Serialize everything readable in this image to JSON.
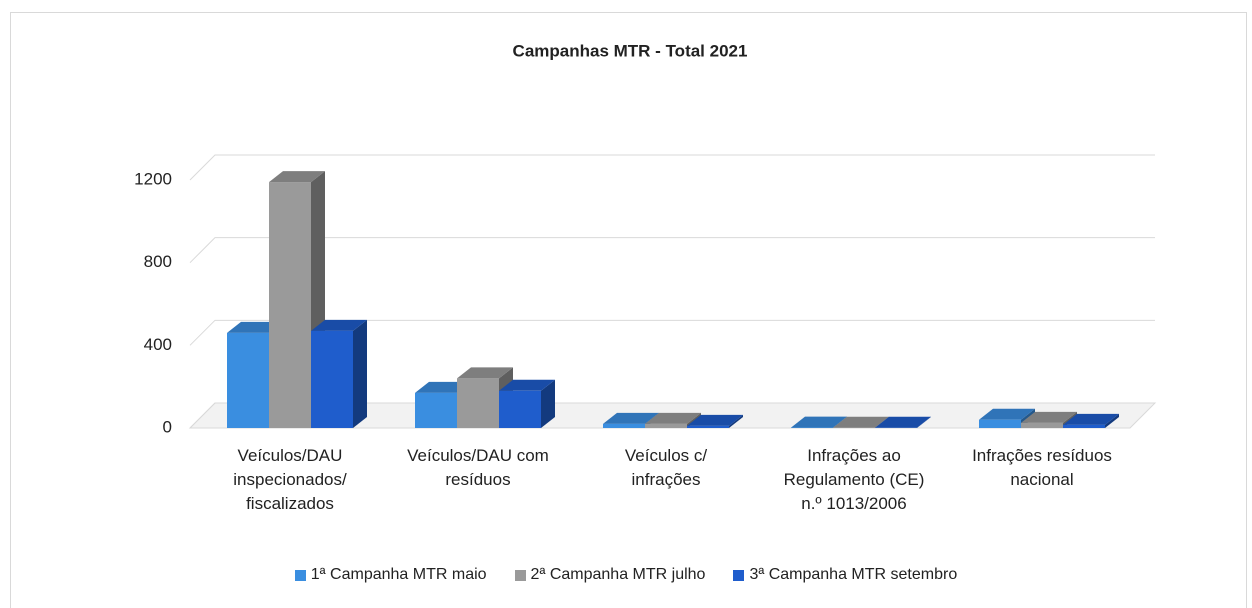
{
  "chart_data": {
    "type": "bar3d",
    "title": "Campanhas MTR - Total 2021",
    "categories": [
      "Veículos/DAU inspecionados/ fiscalizados",
      "Veículos/DAU com resíduos",
      "Veículos c/ infrações",
      "Infrações ao Regulamento (CE) n.º 1013/2006",
      "Infrações resíduos nacional"
    ],
    "series": [
      {
        "name": "1ª Campanha MTR maio",
        "color": "#3a8ee0",
        "values": [
          460,
          170,
          20,
          2,
          40
        ]
      },
      {
        "name": "2ª Campanha MTR julho",
        "color": "#9a9a9a",
        "values": [
          1190,
          240,
          20,
          1,
          25
        ]
      },
      {
        "name": "3ª Campanha MTR setembro",
        "color": "#1f5dcc",
        "values": [
          470,
          180,
          10,
          1,
          15
        ]
      }
    ],
    "ylim": [
      0,
      1200
    ],
    "yticks": [
      0,
      400,
      800,
      1200
    ],
    "grid": true
  }
}
